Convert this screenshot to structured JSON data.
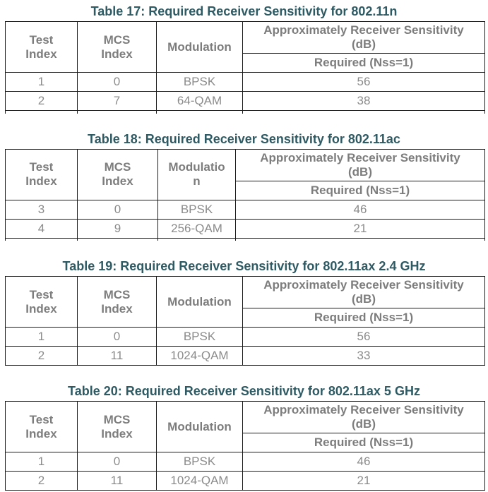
{
  "colors": {
    "title_text": "#2E5A64",
    "header_text": "#7d7d7d",
    "cell_text": "#8b8b8b",
    "border": "#1b1b1b",
    "page_bg": "#ffffff"
  },
  "tables": [
    {
      "title": "Table 17: Required Receiver Sensitivity for 802.11n",
      "headers": {
        "test_index": "Test\nIndex",
        "mcs_index": "MCS\nIndex",
        "modulation": "Modulation",
        "sensitivity": "Approximately Receiver Sensitivity\n(dB)",
        "required": "Required (Nss=1)"
      },
      "rows": [
        [
          "1",
          "0",
          "BPSK",
          "56"
        ],
        [
          "2",
          "7",
          "64-QAM",
          "38"
        ]
      ]
    },
    {
      "title": "Table 18: Required Receiver Sensitivity for 802.11ac",
      "headers": {
        "test_index": "Test\nIndex",
        "mcs_index": "MCS\nIndex",
        "modulation": "Modulatio\nn",
        "sensitivity": "Approximately Receiver Sensitivity\n(dB)",
        "required": "Required (Nss=1)"
      },
      "rows": [
        [
          "3",
          "0",
          "BPSK",
          "46"
        ],
        [
          "4",
          "9",
          "256-QAM",
          "21"
        ]
      ]
    },
    {
      "title": "Table 19: Required Receiver Sensitivity for 802.11ax 2.4 GHz",
      "headers": {
        "test_index": "Test\nIndex",
        "mcs_index": "MCS\nIndex",
        "modulation": "Modulation",
        "sensitivity": "Approximately Receiver Sensitivity\n(dB)",
        "required": "Required (Nss=1)"
      },
      "rows": [
        [
          "1",
          "0",
          "BPSK",
          "56"
        ],
        [
          "2",
          "11",
          "1024-QAM",
          "33"
        ]
      ]
    },
    {
      "title": "Table 20: Required Receiver Sensitivity for 802.11ax 5 GHz",
      "headers": {
        "test_index": "Test\nIndex",
        "mcs_index": "MCS\nIndex",
        "modulation": "Modulation",
        "sensitivity": "Approximately Receiver Sensitivity\n(dB)",
        "required": "Required (Nss=1)"
      },
      "rows": [
        [
          "1",
          "0",
          "BPSK",
          "46"
        ],
        [
          "2",
          "11",
          "1024-QAM",
          "21"
        ]
      ]
    }
  ]
}
